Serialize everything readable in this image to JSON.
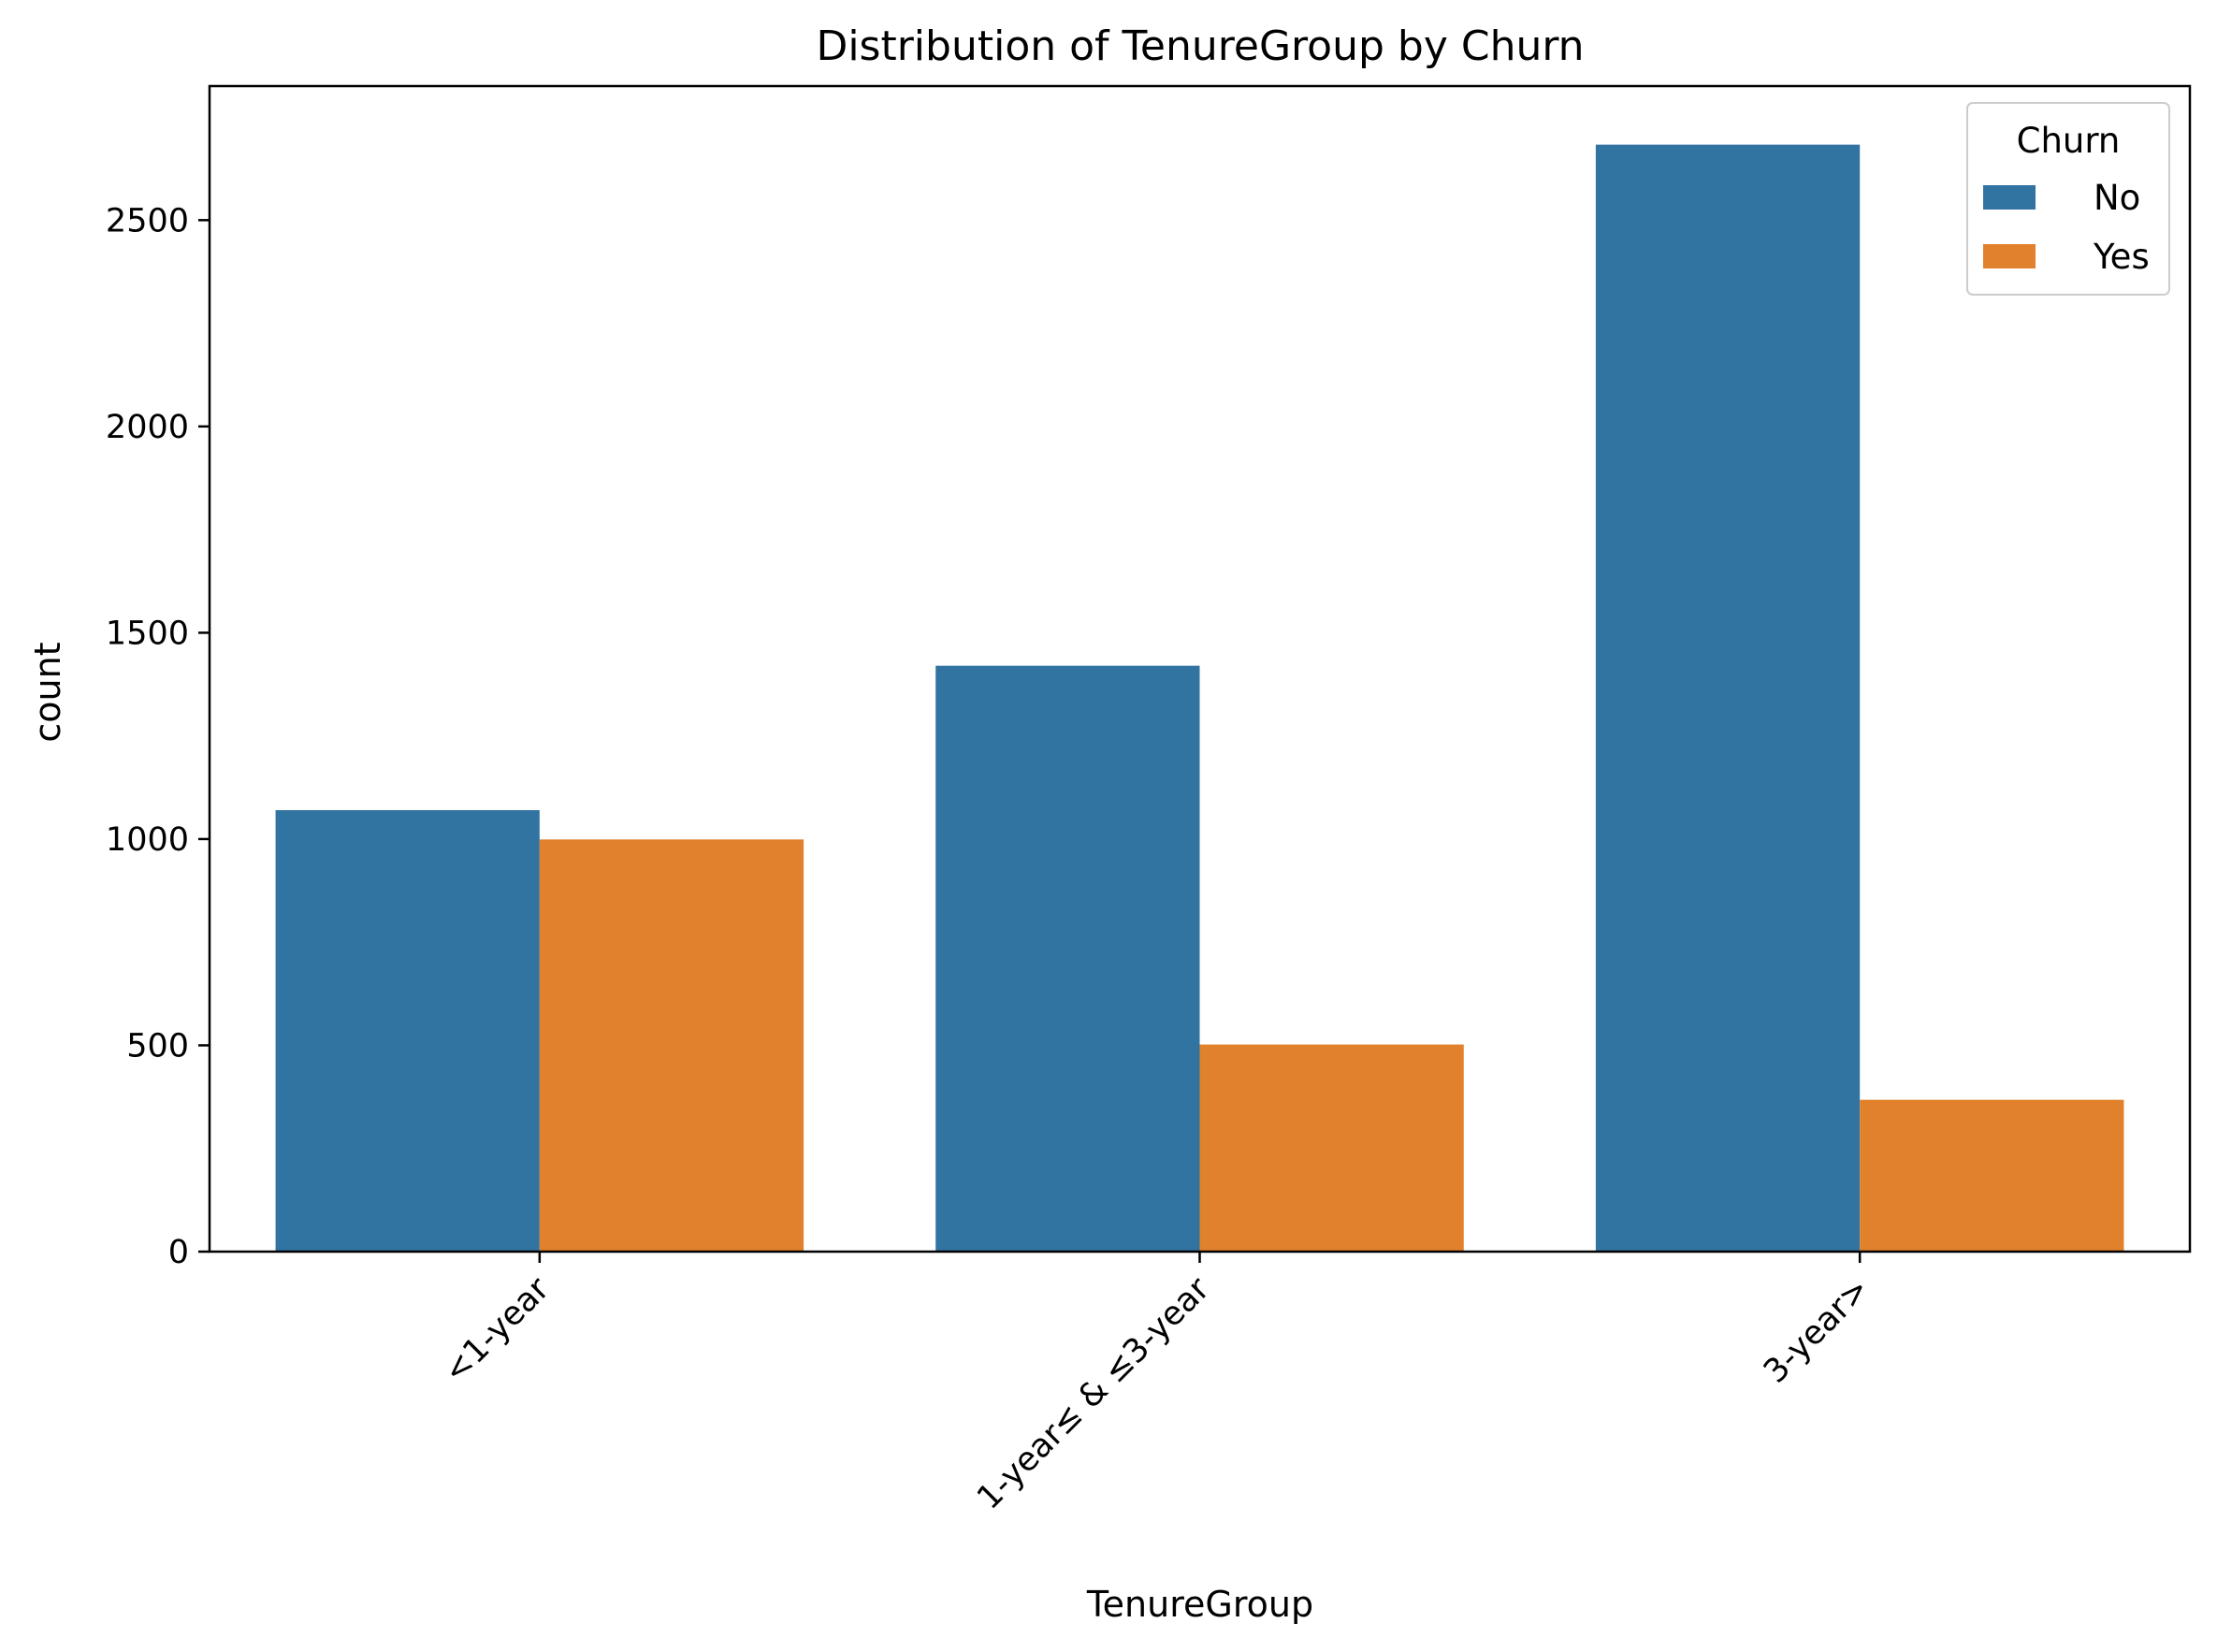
{
  "chart_data": {
    "type": "bar",
    "title": "Distribution of TenureGroup by Churn",
    "xlabel": "TenureGroup",
    "ylabel": "count",
    "categories": [
      "<1-year",
      "1-year≤ & ≤3-year",
      "3-year>"
    ],
    "series": [
      {
        "name": "No",
        "color": "#3274a1",
        "values": [
          1070,
          1420,
          2683
        ]
      },
      {
        "name": "Yes",
        "color": "#e1812c",
        "values": [
          999,
          502,
          368
        ]
      }
    ],
    "ylim": [
      0,
      2825
    ],
    "yticks": [
      0,
      500,
      1000,
      1500,
      2000,
      2500
    ],
    "grid": false,
    "legend": {
      "title": "Churn",
      "position": "top-right"
    }
  }
}
